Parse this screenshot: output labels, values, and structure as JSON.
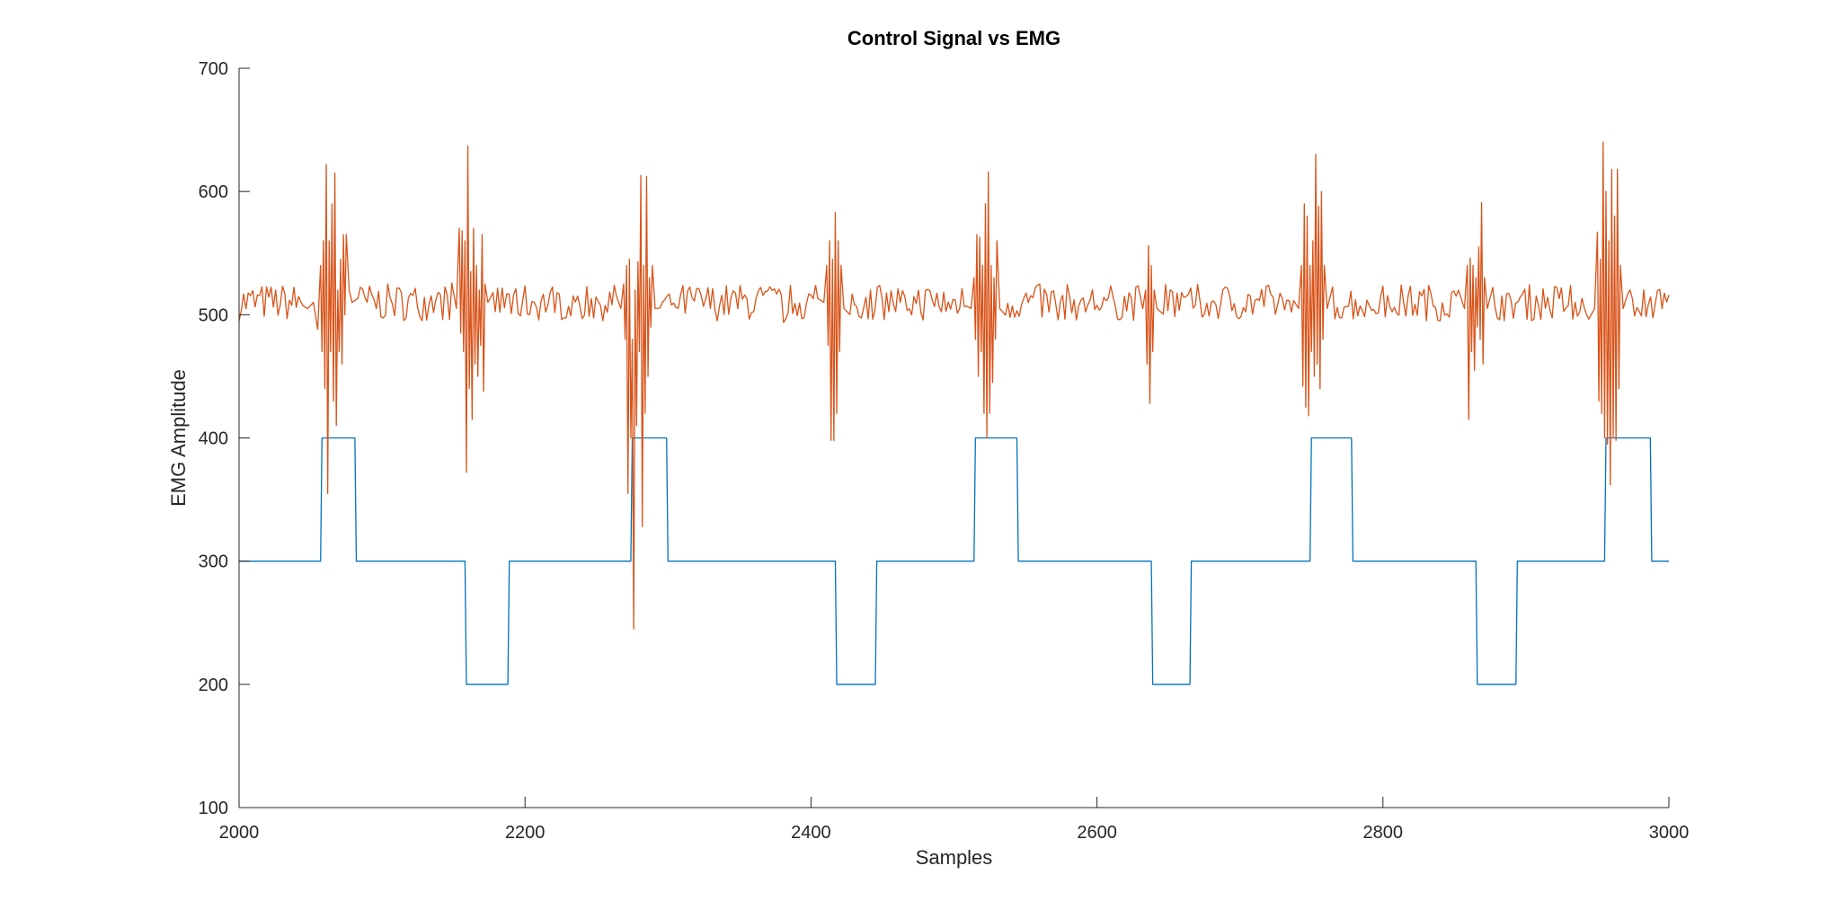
{
  "chart_data": {
    "type": "line",
    "title": "Control Signal vs EMG",
    "xlabel": "Samples",
    "ylabel": "EMG Amplitude",
    "xlim": [
      2000,
      3000
    ],
    "ylim": [
      100,
      700
    ],
    "xticks": [
      2000,
      2200,
      2400,
      2600,
      2800,
      3000
    ],
    "yticks": [
      100,
      200,
      300,
      400,
      500,
      600,
      700
    ],
    "grid": false,
    "series": [
      {
        "color": "#0072BD",
        "points": [
          [
            2000,
            300
          ],
          [
            2057,
            300
          ],
          [
            2058,
            400
          ],
          [
            2081,
            400
          ],
          [
            2082,
            300
          ],
          [
            2158,
            300
          ],
          [
            2159,
            200
          ],
          [
            2188,
            200
          ],
          [
            2189,
            300
          ],
          [
            2274,
            300
          ],
          [
            2275,
            400
          ],
          [
            2299,
            400
          ],
          [
            2300,
            300
          ],
          [
            2417,
            300
          ],
          [
            2418,
            200
          ],
          [
            2445,
            200
          ],
          [
            2446,
            300
          ],
          [
            2514,
            300
          ],
          [
            2515,
            400
          ],
          [
            2544,
            400
          ],
          [
            2545,
            300
          ],
          [
            2638,
            300
          ],
          [
            2639,
            200
          ],
          [
            2665,
            200
          ],
          [
            2666,
            300
          ],
          [
            2749,
            300
          ],
          [
            2750,
            400
          ],
          [
            2778,
            400
          ],
          [
            2779,
            300
          ],
          [
            2865,
            300
          ],
          [
            2866,
            200
          ],
          [
            2893,
            200
          ],
          [
            2894,
            300
          ],
          [
            2955,
            300
          ],
          [
            2956,
            400
          ],
          [
            2987,
            400
          ],
          [
            2988,
            300
          ],
          [
            3000,
            300
          ]
        ]
      },
      {
        "color": "#D95319",
        "baseline": 510,
        "noise_amplitude": 15,
        "points": [
          [
            2052,
            510
          ],
          [
            2055,
            488
          ],
          [
            2057,
            540
          ],
          [
            2058,
            470
          ],
          [
            2059,
            560
          ],
          [
            2060,
            440
          ],
          [
            2061,
            622
          ],
          [
            2062,
            355
          ],
          [
            2063,
            560
          ],
          [
            2064,
            470
          ],
          [
            2065,
            590
          ],
          [
            2066,
            430
          ],
          [
            2067,
            615
          ],
          [
            2068,
            410
          ],
          [
            2069,
            520
          ],
          [
            2070,
            470
          ],
          [
            2071,
            545
          ],
          [
            2072,
            460
          ],
          [
            2073,
            565
          ],
          [
            2074,
            500
          ],
          [
            2075,
            565
          ],
          [
            2077,
            520
          ],
          [
            2079,
            510
          ],
          [
            2152,
            505
          ],
          [
            2154,
            570
          ],
          [
            2155,
            485
          ],
          [
            2156,
            568
          ],
          [
            2157,
            470
          ],
          [
            2158,
            560
          ],
          [
            2159,
            372
          ],
          [
            2160,
            637
          ],
          [
            2161,
            440
          ],
          [
            2162,
            535
          ],
          [
            2163,
            415
          ],
          [
            2164,
            570
          ],
          [
            2165,
            460
          ],
          [
            2166,
            540
          ],
          [
            2167,
            450
          ],
          [
            2168,
            520
          ],
          [
            2169,
            475
          ],
          [
            2170,
            565
          ],
          [
            2171,
            438
          ],
          [
            2172,
            525
          ],
          [
            2174,
            510
          ],
          [
            2267,
            505
          ],
          [
            2269,
            525
          ],
          [
            2270,
            480
          ],
          [
            2271,
            540
          ],
          [
            2272,
            355
          ],
          [
            2273,
            545
          ],
          [
            2274,
            400
          ],
          [
            2275,
            480
          ],
          [
            2276,
            245
          ],
          [
            2277,
            520
          ],
          [
            2278,
            410
          ],
          [
            2279,
            543
          ],
          [
            2280,
            470
          ],
          [
            2281,
            613
          ],
          [
            2282,
            328
          ],
          [
            2283,
            540
          ],
          [
            2284,
            420
          ],
          [
            2285,
            612
          ],
          [
            2286,
            450
          ],
          [
            2287,
            530
          ],
          [
            2288,
            490
          ],
          [
            2289,
            540
          ],
          [
            2291,
            505
          ],
          [
            2409,
            510
          ],
          [
            2411,
            540
          ],
          [
            2412,
            475
          ],
          [
            2413,
            560
          ],
          [
            2414,
            398
          ],
          [
            2415,
            545
          ],
          [
            2416,
            398
          ],
          [
            2417,
            583
          ],
          [
            2418,
            420
          ],
          [
            2419,
            560
          ],
          [
            2420,
            470
          ],
          [
            2421,
            540
          ],
          [
            2423,
            505
          ],
          [
            2512,
            505
          ],
          [
            2514,
            530
          ],
          [
            2515,
            480
          ],
          [
            2516,
            565
          ],
          [
            2517,
            450
          ],
          [
            2518,
            563
          ],
          [
            2519,
            470
          ],
          [
            2520,
            540
          ],
          [
            2521,
            420
          ],
          [
            2522,
            590
          ],
          [
            2523,
            400
          ],
          [
            2524,
            616
          ],
          [
            2525,
            420
          ],
          [
            2526,
            540
          ],
          [
            2527,
            445
          ],
          [
            2528,
            530
          ],
          [
            2529,
            480
          ],
          [
            2530,
            560
          ],
          [
            2532,
            505
          ],
          [
            2632,
            505
          ],
          [
            2634,
            520
          ],
          [
            2635,
            460
          ],
          [
            2636,
            556
          ],
          [
            2637,
            428
          ],
          [
            2638,
            540
          ],
          [
            2639,
            470
          ],
          [
            2640,
            520
          ],
          [
            2642,
            505
          ],
          [
            2741,
            505
          ],
          [
            2743,
            540
          ],
          [
            2744,
            442
          ],
          [
            2745,
            590
          ],
          [
            2746,
            425
          ],
          [
            2747,
            580
          ],
          [
            2748,
            418
          ],
          [
            2749,
            540
          ],
          [
            2750,
            470
          ],
          [
            2751,
            560
          ],
          [
            2752,
            450
          ],
          [
            2753,
            630
          ],
          [
            2754,
            460
          ],
          [
            2755,
            588
          ],
          [
            2756,
            440
          ],
          [
            2757,
            600
          ],
          [
            2758,
            480
          ],
          [
            2759,
            540
          ],
          [
            2761,
            505
          ],
          [
            2857,
            505
          ],
          [
            2859,
            540
          ],
          [
            2860,
            415
          ],
          [
            2861,
            546
          ],
          [
            2862,
            470
          ],
          [
            2863,
            540
          ],
          [
            2864,
            455
          ],
          [
            2865,
            530
          ],
          [
            2866,
            490
          ],
          [
            2867,
            555
          ],
          [
            2868,
            480
          ],
          [
            2869,
            591
          ],
          [
            2870,
            460
          ],
          [
            2871,
            530
          ],
          [
            2873,
            505
          ],
          [
            2948,
            505
          ],
          [
            2950,
            567
          ],
          [
            2951,
            430
          ],
          [
            2952,
            545
          ],
          [
            2953,
            420
          ],
          [
            2954,
            640
          ],
          [
            2955,
            400
          ],
          [
            2956,
            600
          ],
          [
            2957,
            395
          ],
          [
            2958,
            560
          ],
          [
            2959,
            362
          ],
          [
            2960,
            618
          ],
          [
            2961,
            400
          ],
          [
            2962,
            580
          ],
          [
            2963,
            398
          ],
          [
            2964,
            618
          ],
          [
            2965,
            440
          ],
          [
            2966,
            540
          ],
          [
            2968,
            505
          ]
        ]
      }
    ]
  }
}
